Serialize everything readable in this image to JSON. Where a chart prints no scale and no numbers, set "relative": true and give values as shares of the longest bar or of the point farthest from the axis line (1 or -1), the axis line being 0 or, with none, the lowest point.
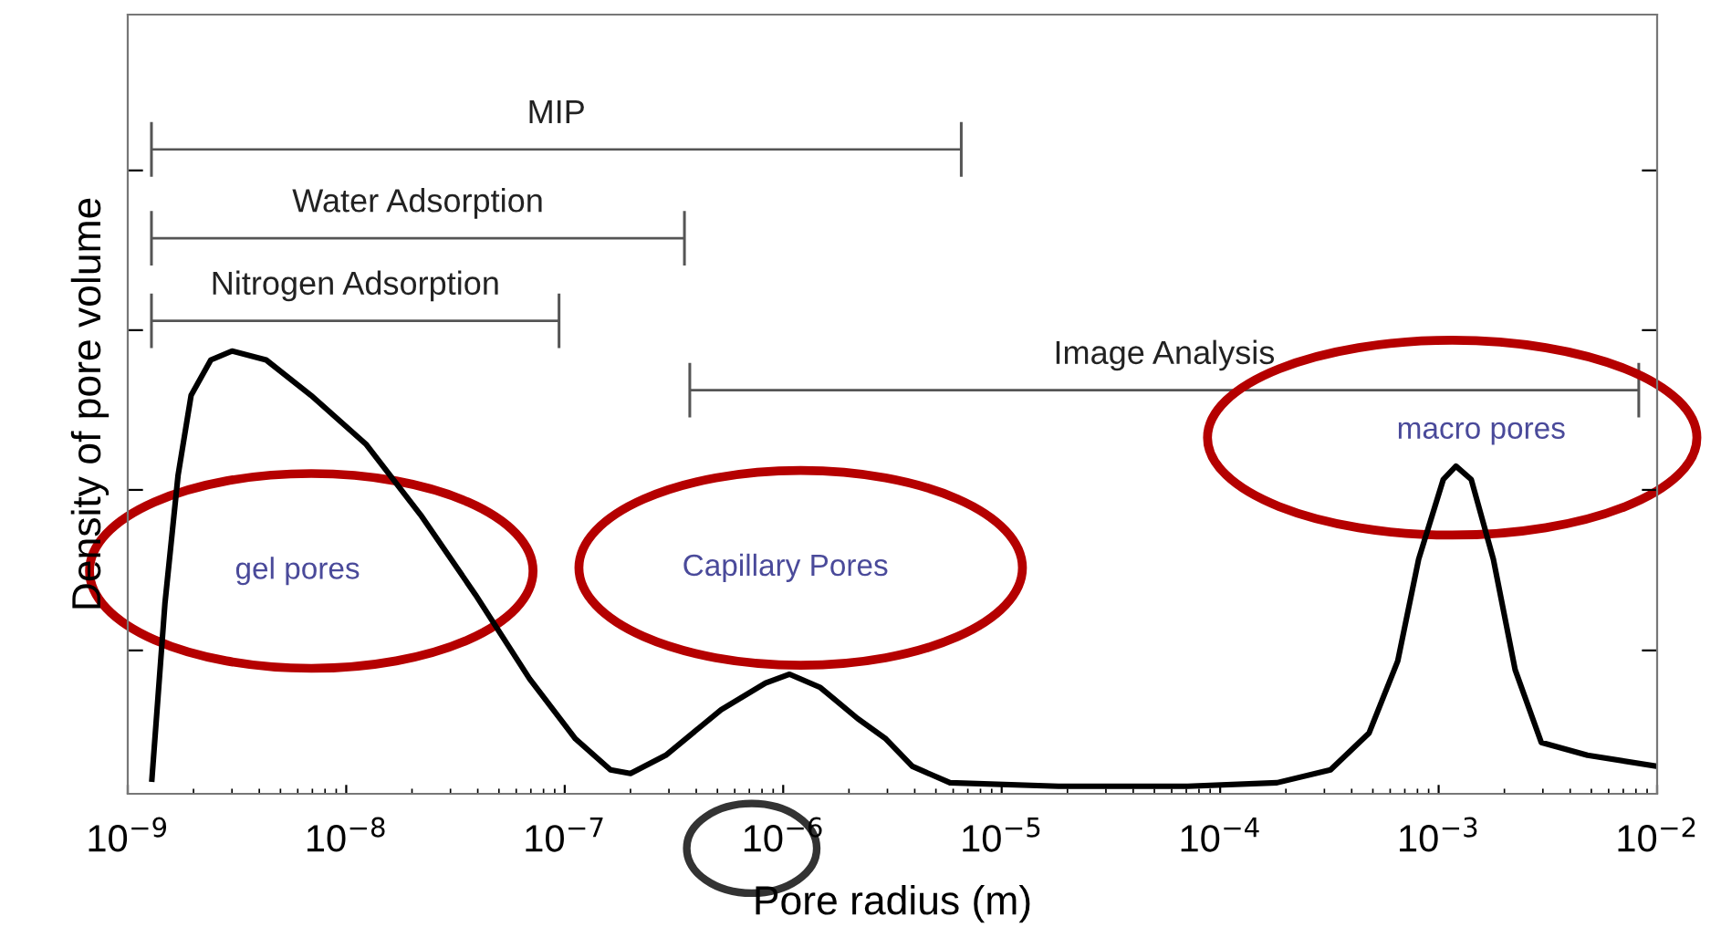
{
  "chart_data": {
    "type": "line",
    "relative": true,
    "xlabel": "Pore radius (m)",
    "ylabel": "Density of pore volume",
    "log": "x",
    "xlim": [
      1e-09,
      0.01
    ],
    "xticks": [
      {
        "value": 1e-09,
        "label": "10$^{−9}$"
      },
      {
        "value": 1e-08,
        "label": "10$^{−8}$"
      },
      {
        "value": 1e-07,
        "label": "10$^{−7}$"
      },
      {
        "value": 1e-06,
        "label": "10$^{−6}$"
      },
      {
        "value": 1e-05,
        "label": "10$^{−5}$"
      },
      {
        "value": 0.0001,
        "label": "10$^{−4}$"
      },
      {
        "value": 0.001,
        "label": "10$^{−3}$"
      },
      {
        "value": 0.01,
        "label": "10$^{−2}$"
      }
    ],
    "x": [
      1.29e-09,
      1.48e-09,
      1.7e-09,
      1.95e-09,
      2.4e-09,
      3e-09,
      4.3e-09,
      6.9e-09,
      1.23e-08,
      2.19e-08,
      3.9e-08,
      6.9e-08,
      1.12e-07,
      1.62e-07,
      2e-07,
      2.9e-07,
      5.2e-07,
      8.3e-07,
      1.07e-06,
      1.48e-06,
      2.19e-06,
      2.95e-06,
      3.9e-06,
      5.8e-06,
      1.82e-05,
      7.1e-05,
      0.000182,
      0.00032,
      0.00048,
      0.00065,
      0.00081,
      0.00105,
      0.0012,
      0.00141,
      0.00178,
      0.00224,
      0.00295,
      0.0048,
      0.01
    ],
    "series": [
      {
        "color": "#000000",
        "values": [
          0.033,
          0.43,
          0.72,
          0.9,
          0.98,
          1.0,
          0.98,
          0.9,
          0.79,
          0.63,
          0.45,
          0.26,
          0.124,
          0.054,
          0.046,
          0.087,
          0.19,
          0.25,
          0.27,
          0.24,
          0.17,
          0.124,
          0.062,
          0.025,
          0.017,
          0.017,
          0.025,
          0.054,
          0.137,
          0.3,
          0.53,
          0.71,
          0.74,
          0.71,
          0.53,
          0.28,
          0.116,
          0.087,
          0.062
        ]
      }
    ],
    "annotations": [
      "MIP",
      "Water Adsorption",
      "Nitrogen Adsorption",
      "Image Analysis",
      "gel pores",
      "Capillary Pores",
      "macro pores"
    ],
    "marker": "none",
    "line_style": "solid",
    "grid": false,
    "legend": false
  }
}
